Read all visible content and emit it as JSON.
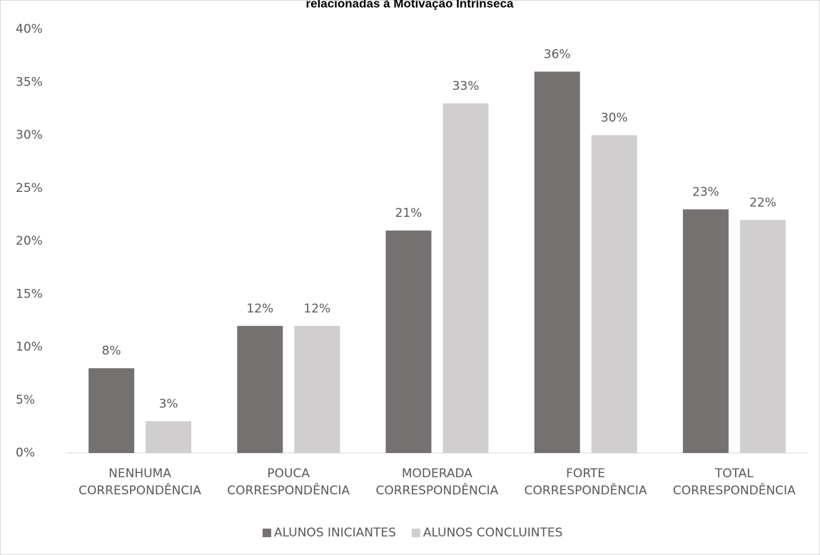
{
  "chart_data": {
    "type": "bar",
    "title": "relacionadas à Motivação Intrínseca",
    "categories": [
      "NENHUMA CORRESPONDÊNCIA",
      "POUCA CORRESPONDÊNCIA",
      "MODERADA CORRESPONDÊNCIA",
      "FORTE CORRESPONDÊNCIA",
      "TOTAL CORRESPONDÊNCIA"
    ],
    "series": [
      {
        "name": "ALUNOS INICIANTES",
        "color": "#767171",
        "values": [
          8,
          12,
          21,
          36,
          23
        ],
        "value_labels": [
          "8%",
          "12%",
          "21%",
          "36%",
          "23%"
        ]
      },
      {
        "name": "ALUNOS CONCLUINTES",
        "color": "#d0cece",
        "values": [
          3,
          12,
          33,
          30,
          22
        ],
        "value_labels": [
          "3%",
          "12%",
          "33%",
          "30%",
          "22%"
        ]
      }
    ],
    "ylim": [
      0,
      40
    ],
    "yticks": [
      {
        "value": 0,
        "label": "0%"
      },
      {
        "value": 5,
        "label": "5%"
      },
      {
        "value": 10,
        "label": "10%"
      },
      {
        "value": 15,
        "label": "15%"
      },
      {
        "value": 20,
        "label": "20%"
      },
      {
        "value": 25,
        "label": "25%"
      },
      {
        "value": 30,
        "label": "30%"
      },
      {
        "value": 35,
        "label": "35%"
      },
      {
        "value": 40,
        "label": "40%"
      }
    ],
    "grid": false,
    "legend": "bottom"
  }
}
